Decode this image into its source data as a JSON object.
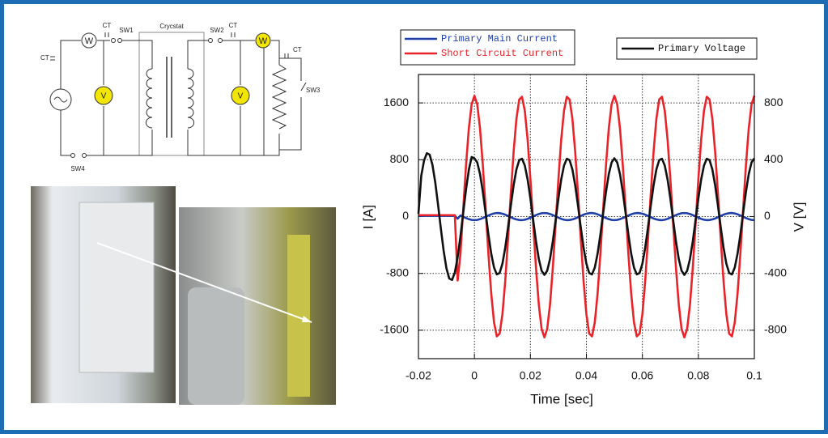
{
  "diagram": {
    "labels": [
      "CT",
      "W",
      "CT",
      "SW1",
      "Crycstat",
      "SW2",
      "CT",
      "W",
      "CT",
      "V",
      "V",
      "SW3",
      "SW4"
    ]
  },
  "chart_data": {
    "type": "line",
    "x_label": "Time [sec]",
    "y_label": "I [A]",
    "y2_label": "V [V]",
    "xlim": [
      -0.02,
      0.1
    ],
    "xticks": [
      -0.02,
      0,
      0.02,
      0.04,
      0.06,
      0.08,
      0.1
    ],
    "ylim": [
      -2000,
      2000
    ],
    "yticks": [
      1600,
      800,
      0,
      -800,
      -1600
    ],
    "y2lim": [
      -1000,
      1000
    ],
    "y2ticks": [
      800,
      400,
      0,
      -400,
      -800
    ],
    "grid": true,
    "x": [
      -0.02,
      -0.019,
      -0.018,
      -0.017,
      -0.016,
      -0.015,
      -0.014,
      -0.013,
      -0.012,
      -0.011,
      -0.01,
      -0.009,
      -0.008,
      -0.007,
      -0.006,
      -0.005,
      -0.004,
      -0.003,
      -0.002,
      -0.001,
      0,
      0.001,
      0.002,
      0.003,
      0.004,
      0.005,
      0.006,
      0.007,
      0.008,
      0.009,
      0.01,
      0.011,
      0.012,
      0.013,
      0.014,
      0.015,
      0.016,
      0.017,
      0.018,
      0.019,
      0.02,
      0.021,
      0.022,
      0.023,
      0.024,
      0.025,
      0.026,
      0.027,
      0.028,
      0.029,
      0.03,
      0.031,
      0.032,
      0.033,
      0.034,
      0.035,
      0.036,
      0.037,
      0.038,
      0.039,
      0.04,
      0.041,
      0.042,
      0.043,
      0.044,
      0.045,
      0.046,
      0.047,
      0.048,
      0.049,
      0.05,
      0.051,
      0.052,
      0.053,
      0.054,
      0.055,
      0.056,
      0.057,
      0.058,
      0.059,
      0.06,
      0.061,
      0.062,
      0.063,
      0.064,
      0.065,
      0.066,
      0.067,
      0.068,
      0.069,
      0.07,
      0.071,
      0.072,
      0.073,
      0.074,
      0.075,
      0.076,
      0.077,
      0.078,
      0.079,
      0.08,
      0.081,
      0.082,
      0.083,
      0.084,
      0.085,
      0.086,
      0.087,
      0.088,
      0.089,
      0.09,
      0.091,
      0.092,
      0.093,
      0.094,
      0.095,
      0.096,
      0.097,
      0.098,
      0.099,
      0.1
    ],
    "series": [
      {
        "name": "Primary Main Current",
        "color": "#1f3fa8",
        "values": [
          10,
          10,
          10,
          10,
          10,
          10,
          10,
          10,
          10,
          10,
          10,
          10,
          10,
          10,
          -30,
          15,
          -3,
          -21,
          -36,
          -47,
          -50,
          -47,
          -36,
          -21,
          -3,
          15,
          32,
          44,
          50,
          48,
          40,
          27,
          9,
          -9,
          -27,
          -40,
          -48,
          -50,
          -44,
          -32,
          -15,
          3,
          21,
          36,
          47,
          50,
          47,
          36,
          21,
          3,
          -15,
          -32,
          -44,
          -50,
          -48,
          -40,
          -27,
          -9,
          9,
          27,
          40,
          48,
          50,
          44,
          32,
          15,
          -3,
          -21,
          -36,
          -47,
          -50,
          -47,
          -36,
          -21,
          -3,
          15,
          32,
          44,
          50,
          48,
          40,
          27,
          9,
          -9,
          -27,
          -40,
          -48,
          -50,
          -44,
          -32,
          -15,
          3,
          21,
          36,
          47,
          50,
          47,
          36,
          21,
          3,
          -15,
          -32,
          -44,
          -50,
          -48,
          -40,
          -27,
          -9,
          9,
          27,
          40,
          48,
          50,
          44,
          32,
          15,
          -3,
          -21,
          -36,
          -47,
          -50
        ]
      },
      {
        "name": "Short Circuit Current",
        "color": "#e8242a",
        "values": [
          20,
          20,
          20,
          20,
          20,
          20,
          20,
          20,
          20,
          20,
          20,
          20,
          20,
          20,
          -900,
          -525,
          107,
          724,
          1239,
          1581,
          1700,
          1581,
          1239,
          724,
          107,
          -525,
          -1083,
          -1489,
          -1686,
          -1647,
          -1375,
          -911,
          -318,
          318,
          911,
          1375,
          1647,
          1686,
          1489,
          1083,
          525,
          -107,
          -724,
          -1239,
          -1581,
          -1700,
          -1581,
          -1239,
          -724,
          -107,
          525,
          1083,
          1489,
          1686,
          1647,
          1375,
          911,
          318,
          -318,
          -911,
          -1375,
          -1647,
          -1686,
          -1489,
          -1083,
          -525,
          107,
          724,
          1239,
          1581,
          1700,
          1581,
          1239,
          724,
          107,
          -525,
          -1083,
          -1489,
          -1686,
          -1647,
          -1375,
          -911,
          -318,
          318,
          911,
          1375,
          1647,
          1686,
          1489,
          1083,
          525,
          -107,
          -724,
          -1239,
          -1581,
          -1700,
          -1581,
          -1239,
          -724,
          -107,
          525,
          1083,
          1489,
          1686,
          1647,
          1375,
          911,
          318,
          -318,
          -911,
          -1375,
          -1647,
          -1686,
          -1489,
          -1083,
          -525,
          107,
          724,
          1239,
          1581,
          1700
        ]
      },
      {
        "name": "Primary Voltage",
        "color": "#111111",
        "axis": "y2",
        "values": [
          20,
          287,
          394,
          446,
          436,
          364,
          241,
          84,
          -84,
          -241,
          -364,
          -436,
          -446,
          -394,
          -287,
          -139,
          28,
          192,
          328,
          419,
          410,
          381,
          299,
          175,
          26,
          -127,
          -261,
          -359,
          -407,
          -397,
          -332,
          -220,
          -77,
          77,
          220,
          332,
          397,
          407,
          359,
          261,
          127,
          -26,
          -175,
          -299,
          -381,
          -410,
          -381,
          -299,
          -175,
          -26,
          127,
          261,
          359,
          407,
          397,
          332,
          220,
          77,
          -77,
          -220,
          -332,
          -397,
          -407,
          -359,
          -261,
          -127,
          26,
          175,
          299,
          381,
          410,
          381,
          299,
          175,
          26,
          -127,
          -261,
          -359,
          -407,
          -397,
          -332,
          -220,
          -77,
          77,
          220,
          332,
          397,
          407,
          359,
          261,
          127,
          -26,
          -175,
          -299,
          -381,
          -410,
          -381,
          -299,
          -175,
          -26,
          127,
          261,
          359,
          407,
          397,
          332,
          220,
          77,
          -77,
          -220,
          -332,
          -397,
          -407,
          -359,
          -261,
          -127,
          26,
          175,
          299,
          381,
          410
        ]
      }
    ]
  }
}
